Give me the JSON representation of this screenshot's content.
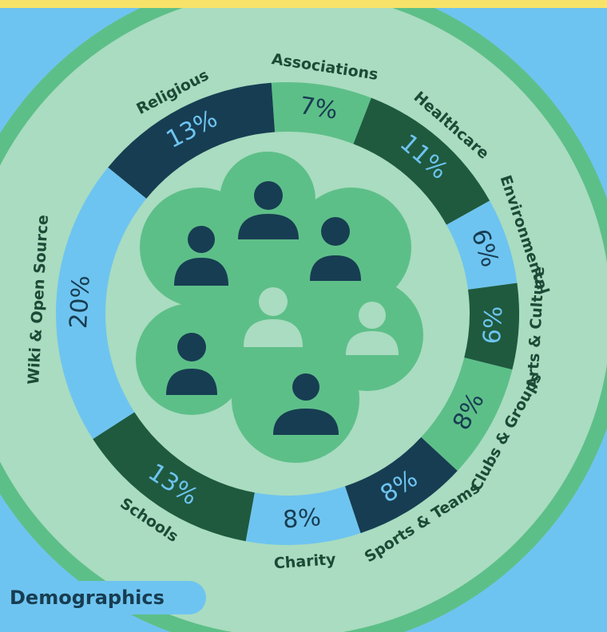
{
  "chart_data": {
    "type": "donut",
    "categories": [
      "Associations",
      "Healthcare",
      "Environmental",
      "Arts & Culture",
      "Clubs & Groups",
      "Sports & Teams",
      "Charity",
      "Schools",
      "Wiki & Open Source",
      "Religious"
    ],
    "values": [
      7,
      11,
      6,
      6,
      8,
      8,
      8,
      13,
      20,
      13
    ],
    "value_labels": [
      "7%",
      "11%",
      "6%",
      "6%",
      "8%",
      "8%",
      "8%",
      "13%",
      "20%",
      "13%"
    ],
    "colors": [
      "#5dbf88",
      "#1f5a3f",
      "#6ec4f0",
      "#1f5a3f",
      "#5dbf88",
      "#173d52",
      "#6ec4f0",
      "#1f5a3f",
      "#6ec4f0",
      "#173d52"
    ],
    "caption": "Demographics"
  }
}
